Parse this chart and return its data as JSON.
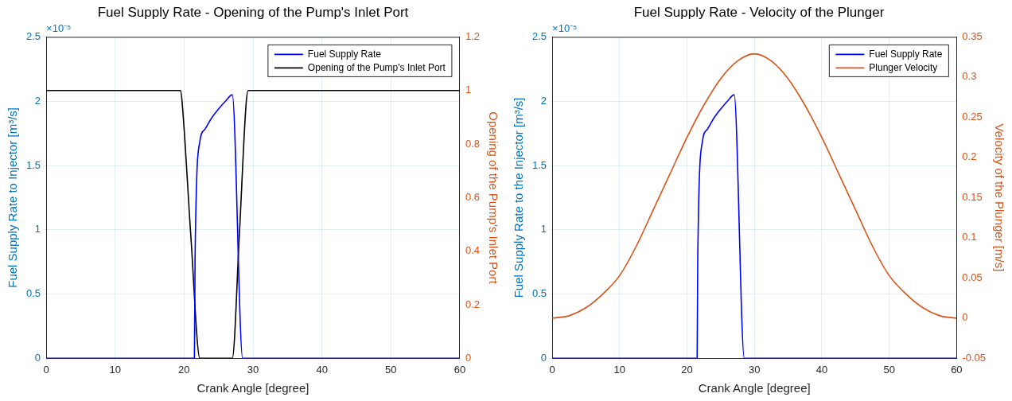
{
  "chart_data": [
    {
      "type": "line",
      "title": "Fuel Supply Rate - Opening of the Pump's Inlet Port",
      "xlabel": "Crank Angle [degree]",
      "ylabel": "Fuel Supply Rate to Injector [m³/s]",
      "y2label": "Opening of the Pump's Inlet Port",
      "xlim": [
        0,
        60
      ],
      "xticks": [
        0,
        10,
        20,
        30,
        40,
        50,
        60
      ],
      "ylim": [
        0,
        2.5
      ],
      "yticks": [
        0,
        0.5,
        1,
        1.5,
        2,
        2.5
      ],
      "y2lim": [
        0,
        1.2
      ],
      "y2ticks": [
        0,
        0.2,
        0.4,
        0.6,
        0.8,
        1,
        1.2
      ],
      "grid": true,
      "legend": "top right",
      "annotations": [
        "×10⁻⁵"
      ],
      "series": [
        {
          "name": "Fuel Supply Rate",
          "color": "#0000ff",
          "x": [
            0,
            21.5,
            21.6,
            22.3,
            23,
            24,
            25,
            26,
            27,
            28.5,
            60
          ],
          "values": [
            0,
            0,
            0.8,
            1.69,
            1.78,
            1.87,
            1.94,
            2.0,
            2.05,
            0,
            0
          ]
        },
        {
          "name": "Opening of the Pump's Inlet Port",
          "color": "#000000",
          "axis": "y2",
          "x": [
            0,
            19.5,
            19.8,
            21,
            22.3,
            27,
            28,
            29,
            29.3,
            60
          ],
          "values": [
            1,
            1,
            0.93,
            0.45,
            0,
            0,
            0.45,
            0.95,
            1,
            1
          ]
        }
      ]
    },
    {
      "type": "line",
      "title": "Fuel Supply Rate - Velocity of the Plunger",
      "xlabel": "Crank Angle [degree]",
      "ylabel": "Fuel Supply Rate to the Injector [m³/s]",
      "y2label": "Velocity of the Plunger [m/s]",
      "xlim": [
        0,
        60
      ],
      "xticks": [
        0,
        10,
        20,
        30,
        40,
        50,
        60
      ],
      "ylim": [
        0,
        2.5
      ],
      "yticks": [
        0,
        0.5,
        1,
        1.5,
        2,
        2.5
      ],
      "y2lim": [
        -0.05,
        0.35
      ],
      "y2ticks": [
        -0.05,
        0,
        0.05,
        0.1,
        0.15,
        0.2,
        0.25,
        0.3,
        0.35
      ],
      "grid": true,
      "legend": "top right",
      "annotations": [
        "×10⁻⁵"
      ],
      "series": [
        {
          "name": "Fuel Supply Rate",
          "color": "#0000ff",
          "x": [
            0,
            21.5,
            21.6,
            22.3,
            23,
            24,
            25,
            26,
            27,
            28.5,
            60
          ],
          "values": [
            0,
            0,
            0.8,
            1.69,
            1.78,
            1.87,
            1.94,
            2.0,
            2.05,
            0,
            0
          ]
        },
        {
          "name": "Plunger Velocity",
          "color": "#d95319",
          "axis": "y2",
          "x": [
            0,
            2.5,
            5,
            7.5,
            10,
            12.5,
            15,
            17.5,
            20,
            22.5,
            25,
            27.5,
            30,
            32.5,
            35,
            37.5,
            40,
            42.5,
            45,
            47.5,
            50,
            52.5,
            55,
            57.5,
            60
          ],
          "values": [
            0,
            0.003,
            0.013,
            0.03,
            0.053,
            0.09,
            0.135,
            0.18,
            0.225,
            0.265,
            0.298,
            0.32,
            0.329,
            0.32,
            0.298,
            0.265,
            0.225,
            0.18,
            0.135,
            0.09,
            0.053,
            0.03,
            0.013,
            0.003,
            0
          ]
        }
      ]
    }
  ]
}
